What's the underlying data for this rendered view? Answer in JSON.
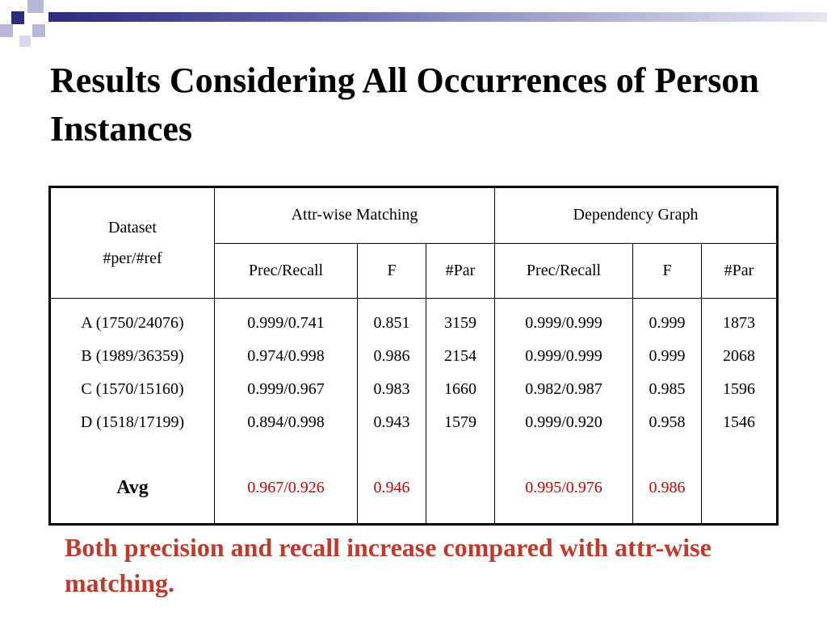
{
  "slide": {
    "title": "Results Considering All Occurrences of Person Instances",
    "note": "Both precision and recall increase compared with attr-wise matching."
  },
  "colors": {
    "accent": "#2b2b80",
    "highlight_red": "#cc0000",
    "note_red": "#c0392b"
  },
  "table": {
    "dataset_header": [
      "Dataset",
      "#per/#ref"
    ],
    "groups": [
      "Attr-wise Matching",
      "Dependency Graph"
    ],
    "subheaders": [
      "Prec/Recall",
      "F",
      "#Par",
      "Prec/Recall",
      "F",
      "#Par"
    ],
    "datasets": [
      "A (1750/24076)",
      "B (1989/36359)",
      "C (1570/15160)",
      "D (1518/17199)"
    ],
    "avg_label": "Avg",
    "columns": [
      {
        "values": [
          "0.999/0.741",
          "0.974/0.998",
          "0.999/0.967",
          "0.894/0.998"
        ],
        "avg": "0.967/0.926"
      },
      {
        "values": [
          "0.851",
          "0.986",
          "0.983",
          "0.943"
        ],
        "avg": "0.946"
      },
      {
        "values": [
          "3159",
          "2154",
          "1660",
          "1579"
        ],
        "avg": ""
      },
      {
        "values": [
          "0.999/0.999",
          "0.999/0.999",
          "0.982/0.987",
          "0.999/0.920"
        ],
        "avg": "0.995/0.976"
      },
      {
        "values": [
          "0.999",
          "0.999",
          "0.985",
          "0.958"
        ],
        "avg": "0.986"
      },
      {
        "values": [
          "1873",
          "2068",
          "1596",
          "1546"
        ],
        "avg": ""
      }
    ]
  }
}
